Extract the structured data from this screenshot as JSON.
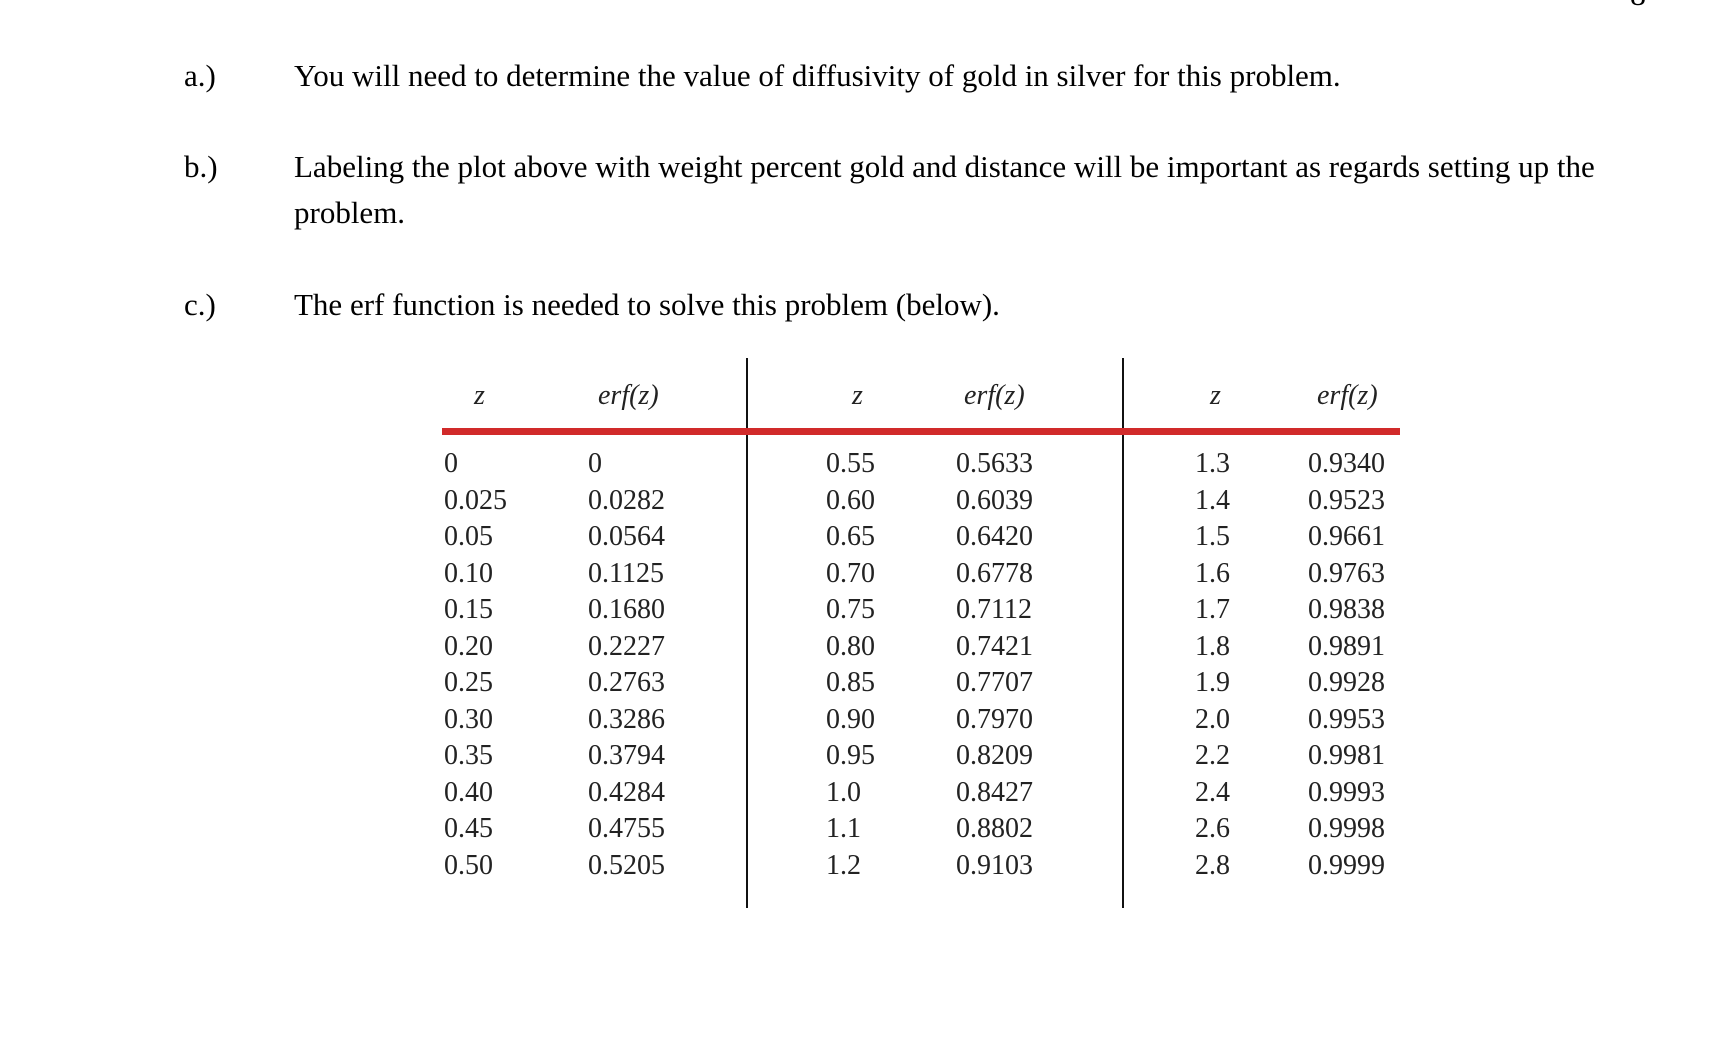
{
  "page_number": "8",
  "items": [
    {
      "label": "a.)",
      "text": "You will need to determine the value of diffusivity of gold in silver for this problem."
    },
    {
      "label": "b.)",
      "text": "Labeling the plot above with weight percent gold and distance will be important as regards setting up the problem."
    },
    {
      "label": "c.)",
      "text": "The erf function is needed to solve this problem (below)."
    }
  ],
  "table": {
    "headers": [
      "z",
      "erf(z)",
      "z",
      "erf(z)",
      "z",
      "erf(z)"
    ],
    "columns": [
      [
        "0",
        "0.025",
        "0.05",
        "0.10",
        "0.15",
        "0.20",
        "0.25",
        "0.30",
        "0.35",
        "0.40",
        "0.45",
        "0.50"
      ],
      [
        "0",
        "0.0282",
        "0.0564",
        "0.1125",
        "0.1680",
        "0.2227",
        "0.2763",
        "0.3286",
        "0.3794",
        "0.4284",
        "0.4755",
        "0.5205"
      ],
      [
        "0.55",
        "0.60",
        "0.65",
        "0.70",
        "0.75",
        "0.80",
        "0.85",
        "0.90",
        "0.95",
        "1.0",
        "1.1",
        "1.2"
      ],
      [
        "0.5633",
        "0.6039",
        "0.6420",
        "0.6778",
        "0.7112",
        "0.7421",
        "0.7707",
        "0.7970",
        "0.8209",
        "0.8427",
        "0.8802",
        "0.9103"
      ],
      [
        "1.3",
        "1.4",
        "1.5",
        "1.6",
        "1.7",
        "1.8",
        "1.9",
        "2.0",
        "2.2",
        "2.4",
        "2.6",
        "2.8"
      ],
      [
        "0.9340",
        "0.9523",
        "0.9661",
        "0.9763",
        "0.9838",
        "0.9891",
        "0.9928",
        "0.9953",
        "0.9981",
        "0.9993",
        "0.9998",
        "0.9999"
      ]
    ],
    "header_rule_color": "#d12a2a"
  }
}
